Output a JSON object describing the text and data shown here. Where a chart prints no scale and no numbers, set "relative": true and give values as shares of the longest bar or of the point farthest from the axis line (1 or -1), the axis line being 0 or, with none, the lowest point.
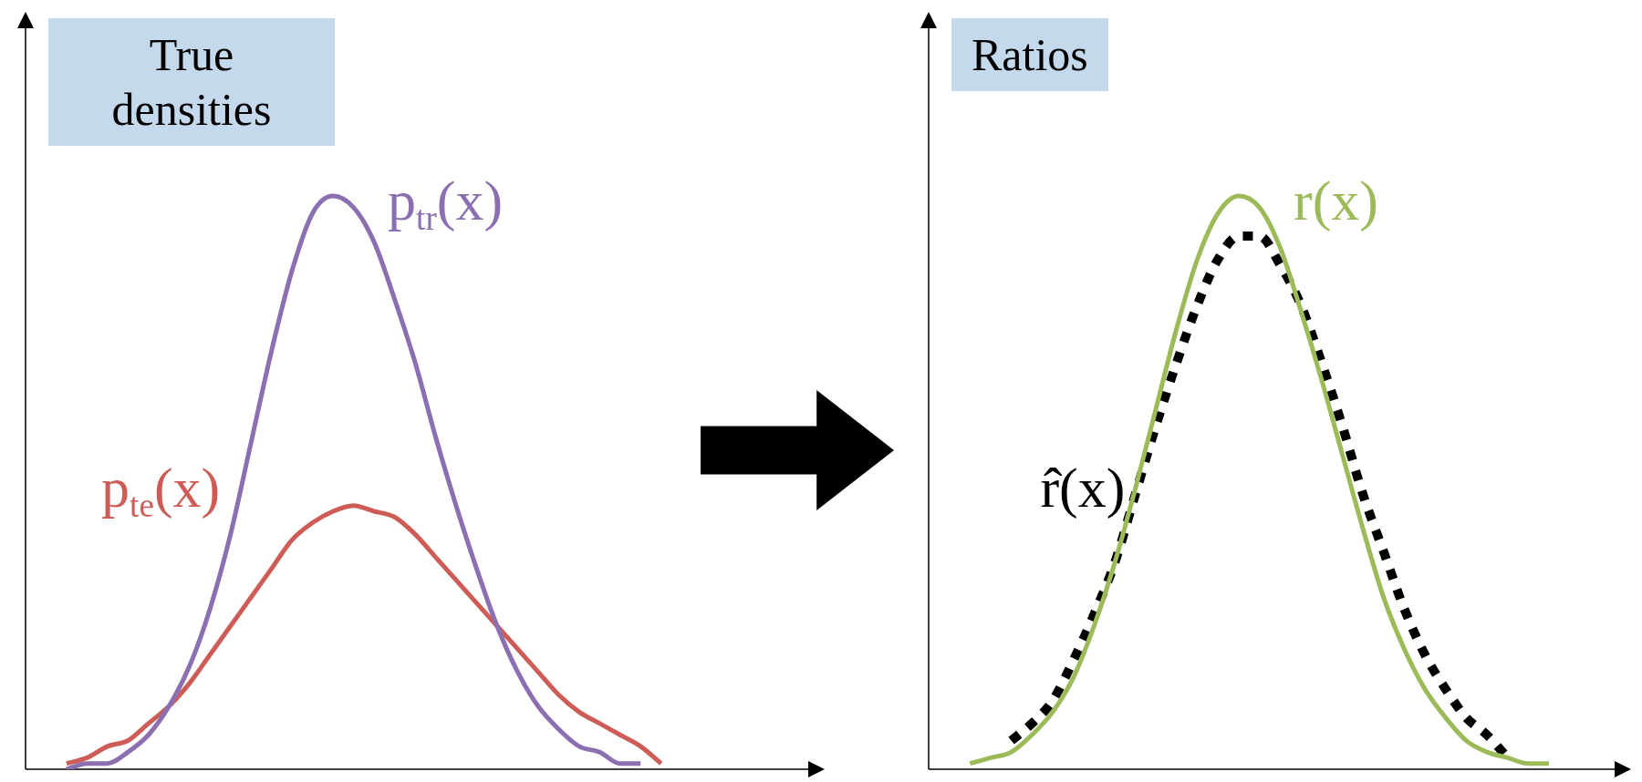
{
  "chart_data": [
    {
      "type": "line",
      "title": "True densities",
      "relative": true,
      "categories": [
        null,
        null,
        null,
        null,
        null,
        null,
        null,
        null,
        null,
        null,
        null,
        null,
        null,
        null,
        null,
        null,
        null,
        null,
        null,
        null,
        null,
        null,
        null,
        null,
        null,
        null,
        null,
        null,
        null,
        null,
        null,
        null,
        null,
        null,
        null,
        null,
        null,
        null,
        null
      ],
      "series": [
        {
          "name": "p$_{tr}$(x)",
          "color": "#8b6fb0",
          "values": [
            null,
            null,
            0.0,
            0.01,
            0.01,
            0.03,
            0.06,
            0.11,
            0.18,
            0.28,
            0.41,
            0.57,
            0.73,
            0.87,
            0.97,
            1,
            0.98,
            0.92,
            0.82,
            0.71,
            0.58,
            0.46,
            0.35,
            0.25,
            0.17,
            0.11,
            0.07,
            0.04,
            0.03,
            0.01,
            0.01,
            null,
            null,
            null,
            null,
            null,
            null,
            null,
            null
          ]
        },
        {
          "name": "p$_{te}$(x)",
          "color": "#cd5c57",
          "values": [
            null,
            null,
            0.01,
            0.02,
            0.04,
            0.05,
            0.08,
            0.11,
            0.15,
            0.2,
            0.25,
            0.3,
            0.35,
            0.4,
            0.43,
            0.45,
            0.46,
            0.45,
            0.44,
            0.41,
            0.37,
            0.33,
            0.29,
            0.25,
            0.21,
            0.17,
            0.13,
            0.1,
            0.08,
            0.06,
            0.04,
            0.01,
            null,
            null,
            null,
            null,
            null,
            null,
            null
          ]
        }
      ]
    },
    {
      "type": "line",
      "title": "Ratios",
      "relative": true,
      "categories": [
        null,
        null,
        null,
        null,
        null,
        null,
        null,
        null,
        null,
        null,
        null,
        null,
        null,
        null,
        null,
        null,
        null,
        null,
        null,
        null,
        null,
        null,
        null,
        null,
        null,
        null,
        null,
        null,
        null,
        null,
        null,
        null,
        null,
        null
      ],
      "series": [
        {
          "name": "r(x)",
          "color": "#9bbb59",
          "values": [
            null,
            null,
            0.01,
            0.02,
            0.03,
            0.06,
            0.1,
            0.16,
            0.25,
            0.36,
            0.49,
            0.63,
            0.77,
            0.89,
            0.97,
            1,
            0.98,
            0.91,
            0.8,
            0.68,
            0.55,
            0.42,
            0.3,
            0.21,
            0.14,
            0.09,
            0.05,
            0.03,
            0.02,
            0.01,
            0.01,
            null,
            null,
            null
          ]
        },
        {
          "name": "r̂(x)",
          "color": "#000000",
          "line_style": "dotted",
          "values": [
            null,
            null,
            null,
            null,
            0.05,
            0.08,
            0.12,
            0.19,
            0.27,
            0.36,
            0.48,
            0.6,
            0.71,
            0.81,
            0.89,
            0.93,
            0.93,
            0.88,
            0.81,
            0.71,
            0.6,
            0.48,
            0.38,
            0.28,
            0.2,
            0.14,
            0.09,
            0.06,
            0.02,
            null,
            null,
            null,
            null,
            null
          ]
        }
      ]
    }
  ]
}
